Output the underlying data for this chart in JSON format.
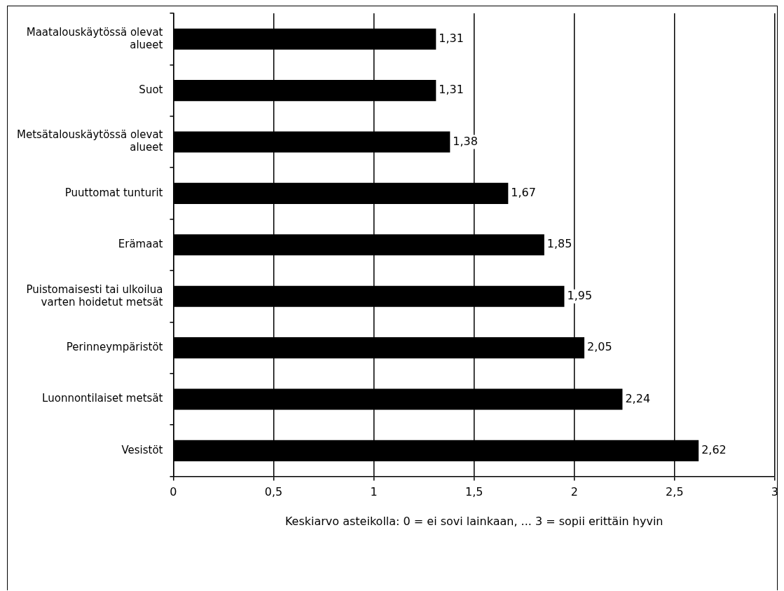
{
  "chart_data": {
    "type": "bar",
    "orientation": "horizontal",
    "categories": [
      "Maatalouskäytössä olevat alueet",
      "Suot",
      "Metsätalouskäytössä olevat alueet",
      "Puuttomat tunturit",
      "Erämaat",
      "Puistomaisesti tai ulkoilua varten hoidetut metsät",
      "Perinneympäristöt",
      "Luonnontilaiset metsät",
      "Vesistöt"
    ],
    "values": [
      1.31,
      1.31,
      1.38,
      1.67,
      1.85,
      1.95,
      2.05,
      2.24,
      2.62
    ],
    "value_labels": [
      "1,31",
      "1,31",
      "1,38",
      "1,67",
      "1,85",
      "1,95",
      "2,05",
      "2,24",
      "2,62"
    ],
    "color": "#000000",
    "xlabel": "Keskiarvo asteikolla: 0 = ei sovi lainkaan, ... 3 = sopii erittäin hyvin",
    "xlim": [
      0,
      3
    ],
    "xticks": [
      0,
      {
        "value": 0.5,
        "label": "0,5"
      },
      1,
      {
        "value": 1.5,
        "label": "1,5"
      },
      2,
      {
        "value": 2.5,
        "label": "2,5"
      },
      3
    ],
    "grid": "x",
    "legend": false
  }
}
